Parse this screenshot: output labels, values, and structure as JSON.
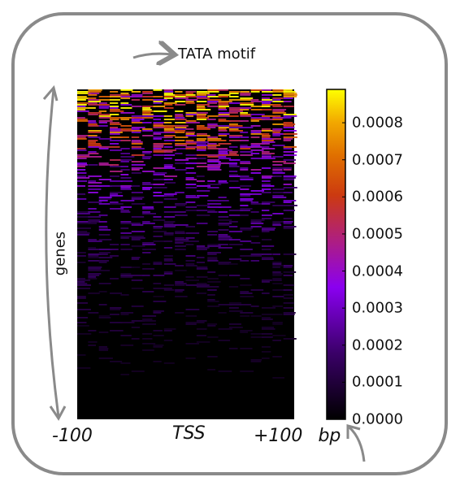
{
  "chart_data": {
    "type": "heatmap",
    "title": "TATA motif",
    "ylabel": "genes",
    "x_tick_labels": [
      "-100",
      "TSS",
      "+100"
    ],
    "x_unit": "bp",
    "xlim": [
      -100,
      100
    ],
    "colormap": "gnuplot",
    "colorbar": {
      "ticks": [
        "0.0000",
        "0.0001",
        "0.0002",
        "0.0003",
        "0.0004",
        "0.0005",
        "0.0006",
        "0.0007",
        "0.0008"
      ],
      "range": [
        0,
        0.00089
      ]
    },
    "density_profile": {
      "description_rows": "gene rank from top to bottom",
      "row_fraction": [
        0.0,
        0.1,
        0.2,
        0.3,
        0.4,
        0.5,
        0.6,
        0.7,
        0.8,
        0.9,
        1.0
      ],
      "typical_value": [
        0.0008,
        0.0007,
        0.00045,
        0.0003,
        0.00022,
        0.00016,
        0.00012,
        9e-05,
        6e-05,
        4e-05,
        2e-05
      ]
    }
  },
  "colors": {
    "frame": "#8a8a8a",
    "arrow": "#8a8a8a",
    "background": "#000000"
  }
}
